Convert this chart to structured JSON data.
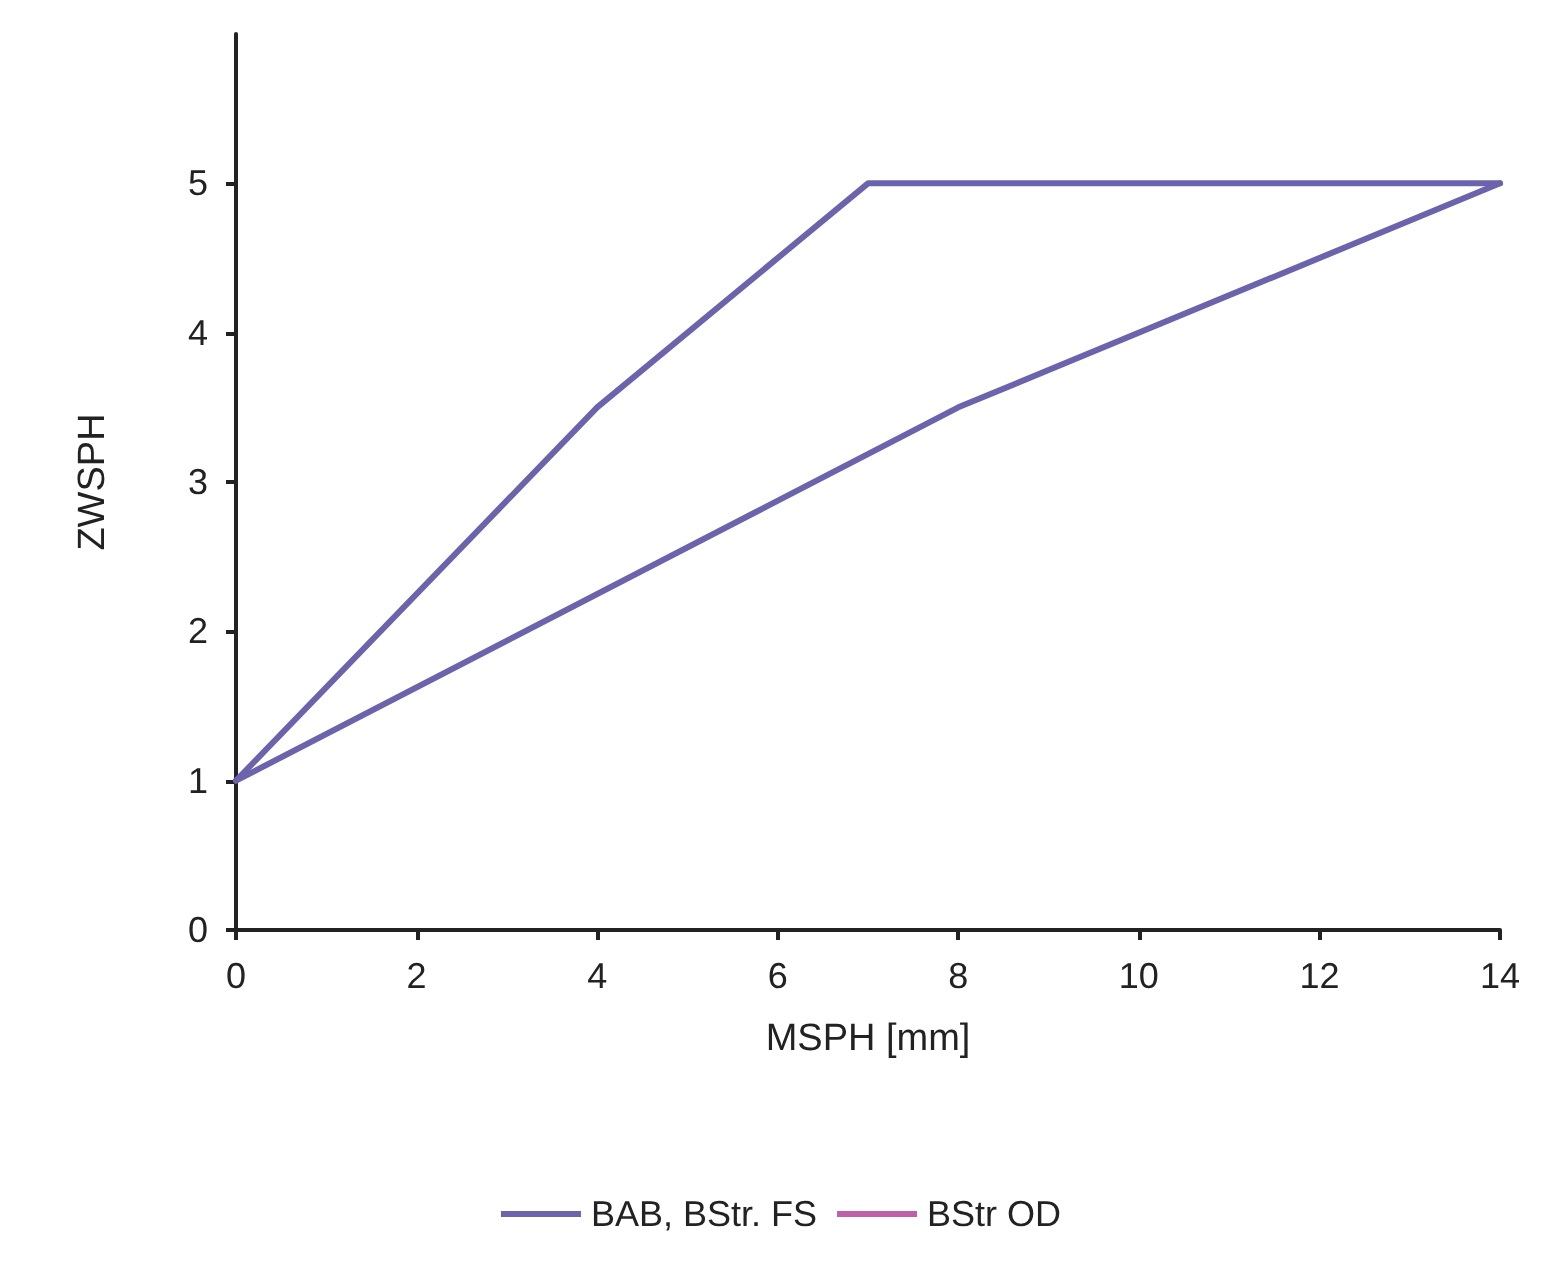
{
  "chart_data": {
    "type": "line",
    "xlabel": "MSPH [mm]",
    "ylabel": "ZWSPH",
    "xlim": [
      0,
      14
    ],
    "xticks": [
      0,
      2,
      4,
      6,
      8,
      10,
      12,
      14
    ],
    "ylim": [
      0,
      6
    ],
    "yticks": [
      0,
      1,
      2,
      3,
      4,
      5
    ],
    "grid": false,
    "legend": "bottom",
    "marker": "none",
    "line_style": "solid",
    "series": [
      {
        "name": "BAB, BStr. FS",
        "color": "#6b64ad",
        "x": [
          0,
          4,
          7,
          14
        ],
        "values": [
          1,
          3.5,
          5,
          5
        ]
      },
      {
        "color": "#6b64ad",
        "x": [
          0,
          8,
          14
        ],
        "values": [
          1,
          3.5,
          5
        ]
      },
      {
        "name": "BStr OD",
        "color": "#c060a8"
      }
    ]
  }
}
